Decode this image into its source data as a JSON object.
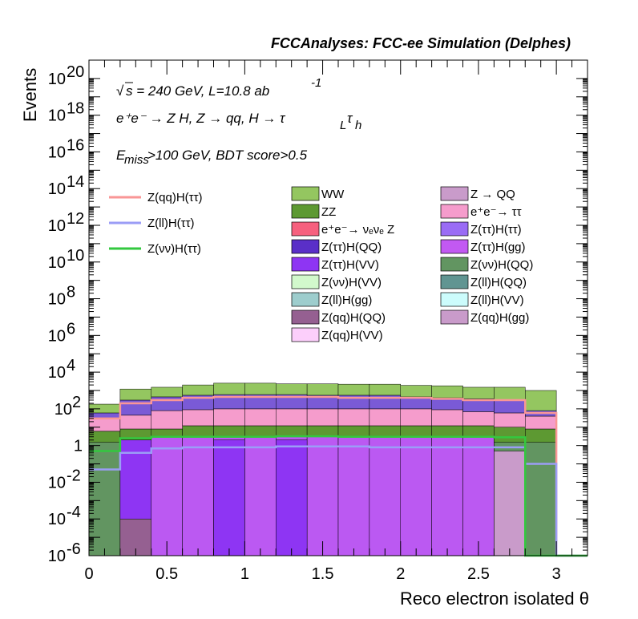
{
  "chart_data": {
    "type": "bar",
    "histogram_style": "stacked",
    "title": "FCCAnalyses: FCC-ee Simulation (Delphes)",
    "xlabel": "Reco electron isolated θ",
    "ylabel": "Events",
    "xlim": [
      0,
      3.2
    ],
    "ylim": [
      1e-06,
      1e+21
    ],
    "log_y": true,
    "grid": false,
    "legend_position": "upper-middle",
    "x_ticks": [
      "0",
      "0.5",
      "1",
      "1.5",
      "2",
      "2.5",
      "3"
    ],
    "annotations": {
      "sqrt_s": "s = 240 GeV, L=10.8 ab",
      "lumi_exp": "-1",
      "process": "e⁺e⁻ → Z H, Z → qq, H → τ",
      "process_sub1": "L",
      "process_tail": "τ",
      "process_sub2": "h",
      "cut_e": "E",
      "cut_sub": "miss",
      "cut_tail": ">100 GeV, BDT score>0.5"
    },
    "bin_edges": [
      0,
      0.2,
      0.4,
      0.6,
      0.8,
      1.0,
      1.2,
      1.4,
      1.6,
      1.8,
      2.0,
      2.2,
      2.4,
      2.6,
      2.8,
      3.0
    ],
    "stack_bands": [
      {
        "name": "ZZ",
        "color": "#5d9932",
        "top": [
          6,
          8,
          8,
          12,
          12,
          12,
          12,
          12,
          12,
          12,
          12,
          12,
          12,
          10,
          8
        ]
      },
      {
        "name": "e⁺e⁻→ τ τ",
        "color": "#f59ccc",
        "top": [
          30,
          45,
          80,
          90,
          100,
          100,
          100,
          100,
          100,
          100,
          100,
          90,
          70,
          60,
          40
        ]
      },
      {
        "name": "Z(ττ)H(ττ)",
        "color": "#7a5ad6",
        "top": [
          60,
          300,
          450,
          550,
          600,
          600,
          600,
          550,
          550,
          550,
          450,
          400,
          350,
          300,
          80
        ]
      },
      {
        "name": "WW",
        "color": "#94c660",
        "top": [
          180,
          1200,
          1500,
          2000,
          2500,
          2500,
          2300,
          2300,
          2200,
          2200,
          1900,
          1800,
          1500,
          1500,
          1000
        ]
      }
    ],
    "lower_components": [
      {
        "name": "Z(νν)H(QQ)",
        "color": "#629561",
        "bins": [
          0,
          1,
          6,
          13,
          14
        ],
        "level": 1.5
      },
      {
        "name": "Z(ll)H(gg)",
        "color": "#9dcdcd",
        "bins": [
          1,
          2,
          3,
          7,
          8,
          9,
          10,
          12
        ],
        "level": 0.3
      },
      {
        "name": "Z(qq)H(QQ)",
        "color": "#956091",
        "bins": [
          1,
          3,
          5
        ],
        "level": 0.6
      },
      {
        "name": "Z(qq)H(gg)",
        "color": "#c99bca",
        "bins": [
          13
        ],
        "level": 0.5
      },
      {
        "name": "e⁺e⁻→ ν_e ν_e Z",
        "color": "#f6607e",
        "bins": [
          8,
          9,
          10,
          11
        ],
        "level": 1.0
      },
      {
        "name": "Z(ττ)H(gg)",
        "color": "#bb59f2",
        "bins": [
          2,
          3,
          4,
          5,
          6,
          7,
          8,
          9,
          10,
          11,
          12
        ],
        "level": 3.0
      },
      {
        "name": "Z(ττ)H(VV)",
        "color": "#8e35f3",
        "bins": [
          1,
          4,
          6
        ],
        "level": 2.0
      }
    ],
    "qq_deep": [
      {
        "bin": 1,
        "value": 0.0001,
        "color": "#956091"
      }
    ],
    "lines": [
      {
        "name": "Z(qq)H(ττ)",
        "color": "#f99696",
        "values": [
          30,
          200,
          300,
          400,
          450,
          450,
          450,
          450,
          400,
          400,
          400,
          350,
          300,
          300,
          60
        ]
      },
      {
        "name": "Z(ll)H(ττ)",
        "color": "#9b9df6",
        "values": [
          0.05,
          0.4,
          0.7,
          0.8,
          0.8,
          0.8,
          0.9,
          0.9,
          0.9,
          0.8,
          0.8,
          0.8,
          0.8,
          0.8,
          0.1
        ]
      },
      {
        "name": "Z(νν)H(ττ)",
        "color": "#33c83f",
        "values": [
          0.5,
          2.5,
          3.0,
          3.0,
          3.0,
          3.0,
          3.2,
          3.2,
          3.0,
          3.0,
          3.0,
          3.0,
          3.0,
          2.8,
          1e-06
        ]
      }
    ],
    "legend_lines": [
      {
        "label": "Z(qq)H(ττ)",
        "color": "#f99696"
      },
      {
        "label": "Z(ll)H(ττ)",
        "color": "#9b9df6"
      },
      {
        "label": "Z(νν)H(ττ)",
        "color": "#33c83f"
      }
    ],
    "legend_fills_col1": [
      {
        "label": "WW",
        "color": "#94c660"
      },
      {
        "label": "ZZ",
        "color": "#5d9932"
      },
      {
        "label": "e⁺e⁻→ νₑνₑ Z",
        "color": "#f6607e"
      },
      {
        "label": "Z(ττ)H(QQ)",
        "color": "#5a2fc8"
      },
      {
        "label": "Z(ττ)H(VV)",
        "color": "#8e35f3"
      },
      {
        "label": "Z(νν)H(VV)",
        "color": "#d2f9cc"
      },
      {
        "label": "Z(ll)H(gg)",
        "color": "#9dcdcd"
      },
      {
        "label": "Z(qq)H(QQ)",
        "color": "#956091"
      },
      {
        "label": "Z(qq)H(VV)",
        "color": "#fccffb"
      }
    ],
    "legend_fills_col2": [
      {
        "label": "Z → QQ",
        "color": "#c99bca"
      },
      {
        "label": "e⁺e⁻→ ττ",
        "color": "#f59ccc"
      },
      {
        "label": "Z(ττ)H(ττ)",
        "color": "#9a6cf5"
      },
      {
        "label": "Z(ττ)H(gg)",
        "color": "#c259f2"
      },
      {
        "label": "Z(νν)H(QQ)",
        "color": "#629561"
      },
      {
        "label": "Z(ll)H(QQ)",
        "color": "#619592"
      },
      {
        "label": "Z(ll)H(VV)",
        "color": "#ccfcfc"
      },
      {
        "label": "Z(qq)H(gg)",
        "color": "#c99bca"
      }
    ]
  }
}
